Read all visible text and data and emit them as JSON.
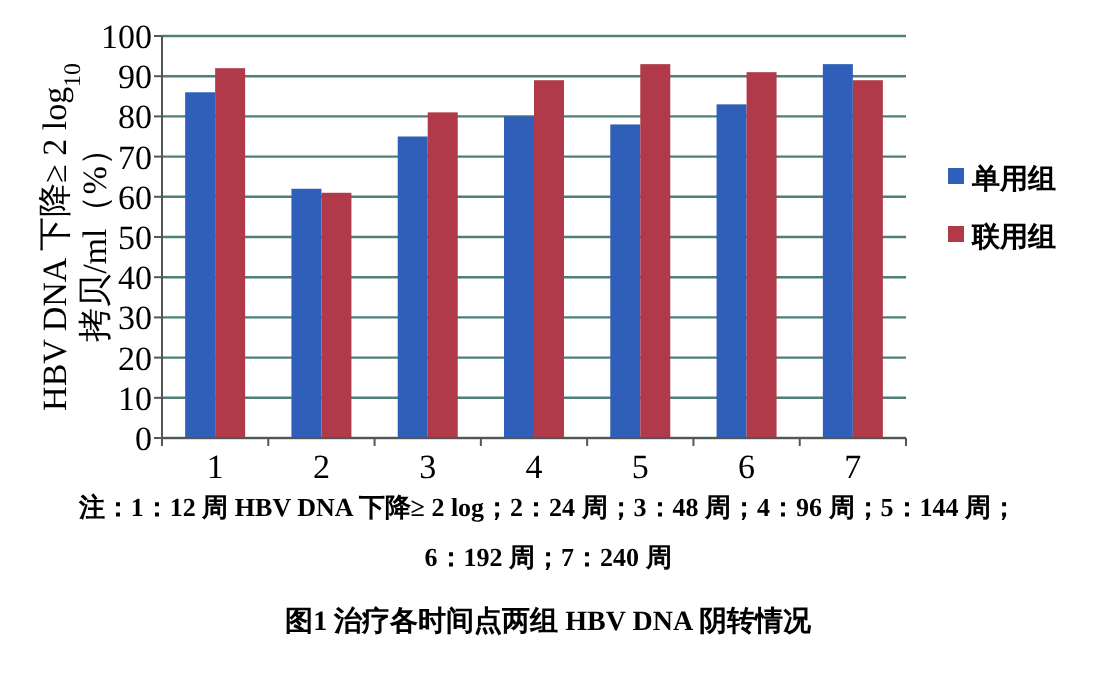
{
  "chart_data": {
    "type": "bar",
    "title": "图1 治疗各时间点两组 HBV DNA 阴转情况",
    "ylabel": "HBV DNA 下降≥ 2 log$_{10}$ 拷贝/ml（%）",
    "categories": [
      "1",
      "2",
      "3",
      "4",
      "5",
      "6",
      "7"
    ],
    "series": [
      {
        "name": "单用组",
        "color": "#2f5fb8",
        "values": [
          86,
          62,
          75,
          80,
          78,
          83,
          93
        ]
      },
      {
        "name": "联用组",
        "color": "#b03a4a",
        "values": [
          92,
          61,
          81,
          89,
          93,
          91,
          89
        ]
      }
    ],
    "ylim": [
      0,
      100
    ],
    "yticks": [
      0,
      10,
      20,
      30,
      40,
      50,
      60,
      70,
      80,
      90,
      100
    ],
    "grid": "y",
    "legend": "right",
    "annotations": [
      "注：1：12 周 HBV DNA 下降≥ 2 log；2：24 周；3：48 周；4：96 周；5：144 周；6：192 周；7：240 周"
    ]
  }
}
